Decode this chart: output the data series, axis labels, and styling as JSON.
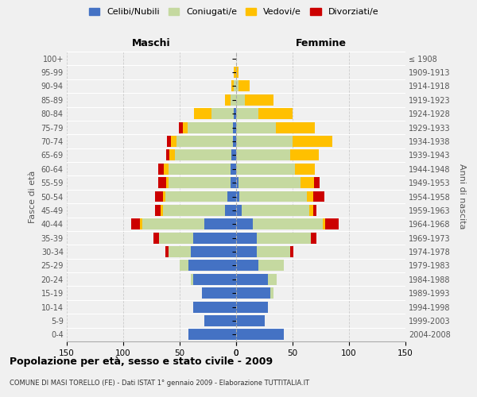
{
  "age_groups": [
    "0-4",
    "5-9",
    "10-14",
    "15-19",
    "20-24",
    "25-29",
    "30-34",
    "35-39",
    "40-44",
    "45-49",
    "50-54",
    "55-59",
    "60-64",
    "65-69",
    "70-74",
    "75-79",
    "80-84",
    "85-89",
    "90-94",
    "95-99",
    "100+"
  ],
  "birth_years": [
    "2004-2008",
    "1999-2003",
    "1994-1998",
    "1989-1993",
    "1984-1988",
    "1979-1983",
    "1974-1978",
    "1969-1973",
    "1964-1968",
    "1959-1963",
    "1954-1958",
    "1949-1953",
    "1944-1948",
    "1939-1943",
    "1934-1938",
    "1929-1933",
    "1924-1928",
    "1919-1923",
    "1914-1918",
    "1909-1913",
    "≤ 1908"
  ],
  "colors": {
    "celibi": "#4472c4",
    "coniugati": "#c5d9a0",
    "vedovi": "#ffc000",
    "divorziati": "#cc0000"
  },
  "maschi": {
    "celibi": [
      42,
      28,
      38,
      30,
      38,
      42,
      40,
      38,
      28,
      10,
      8,
      5,
      5,
      4,
      3,
      3,
      2,
      0,
      0,
      0,
      0
    ],
    "coniugati": [
      0,
      0,
      0,
      0,
      2,
      8,
      20,
      30,
      55,
      55,
      55,
      55,
      55,
      50,
      50,
      40,
      20,
      5,
      2,
      0,
      0
    ],
    "vedovi": [
      0,
      0,
      0,
      0,
      0,
      0,
      0,
      0,
      2,
      2,
      2,
      2,
      4,
      5,
      5,
      4,
      15,
      5,
      2,
      2,
      0
    ],
    "divorziati": [
      0,
      0,
      0,
      0,
      0,
      0,
      3,
      5,
      8,
      5,
      7,
      7,
      5,
      3,
      3,
      4,
      0,
      0,
      0,
      0,
      0
    ]
  },
  "femmine": {
    "celibi": [
      42,
      25,
      28,
      30,
      28,
      20,
      18,
      18,
      15,
      5,
      3,
      2,
      0,
      0,
      0,
      0,
      0,
      0,
      0,
      0,
      0
    ],
    "coniugati": [
      0,
      0,
      0,
      3,
      8,
      22,
      30,
      48,
      62,
      60,
      60,
      55,
      52,
      48,
      50,
      35,
      20,
      8,
      2,
      0,
      0
    ],
    "vedovi": [
      0,
      0,
      0,
      0,
      0,
      0,
      0,
      0,
      2,
      3,
      5,
      12,
      18,
      25,
      35,
      35,
      30,
      25,
      10,
      2,
      0
    ],
    "divorziati": [
      0,
      0,
      0,
      0,
      0,
      0,
      3,
      5,
      12,
      3,
      10,
      5,
      0,
      0,
      0,
      0,
      0,
      0,
      0,
      0,
      0
    ]
  },
  "title": "Popolazione per età, sesso e stato civile - 2009",
  "subtitle": "COMUNE DI MASI TORELLO (FE) - Dati ISTAT 1° gennaio 2009 - Elaborazione TUTTITALIA.IT",
  "xlabel_left": "Maschi",
  "xlabel_right": "Femmine",
  "ylabel_left": "Fasce di età",
  "ylabel_right": "Anni di nascita",
  "xlim": 150,
  "legend_labels": [
    "Celibi/Nubili",
    "Coniugati/e",
    "Vedovi/e",
    "Divorziati/e"
  ],
  "background_color": "#f0f0f0",
  "bar_height": 0.8
}
